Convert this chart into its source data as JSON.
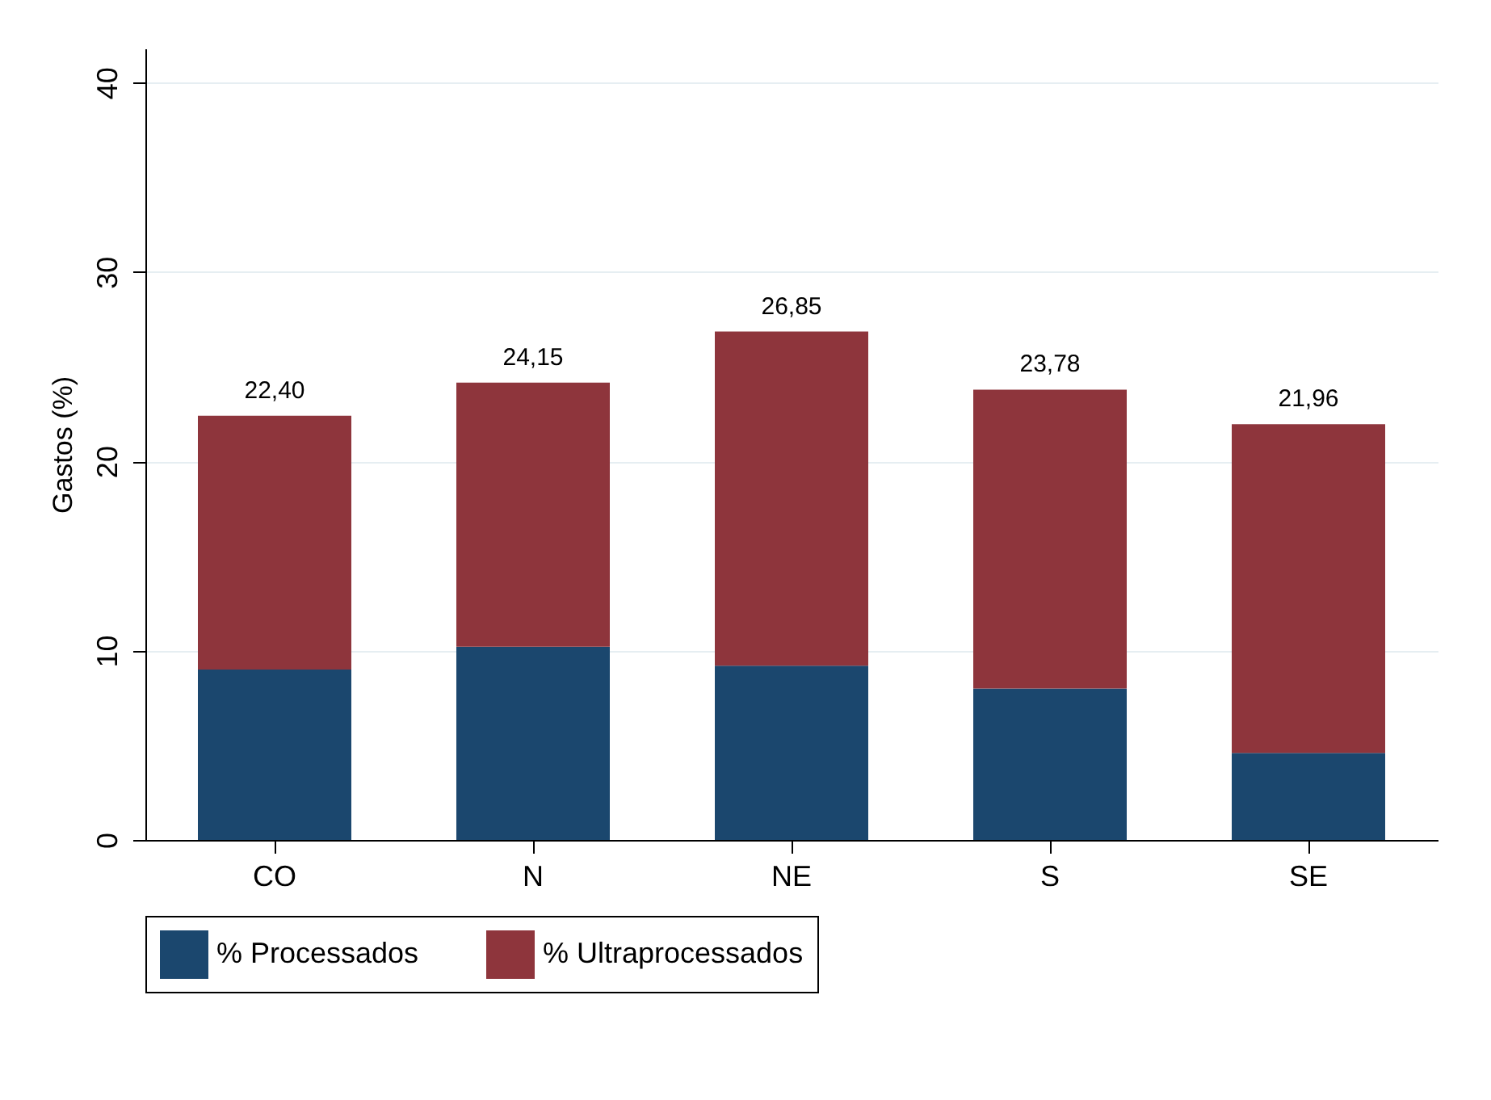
{
  "chart_data": {
    "type": "bar",
    "stacked": true,
    "ylabel": "Gastos (%)",
    "categories": [
      "CO",
      "N",
      "NE",
      "S",
      "SE"
    ],
    "series": [
      {
        "name": "% Processados",
        "color": "#1b476e",
        "values": [
          9.0,
          10.2,
          9.2,
          8.0,
          4.6
        ]
      },
      {
        "name": "% Ultraprocessados",
        "color": "#8e353c",
        "values": [
          13.4,
          13.95,
          17.65,
          15.78,
          17.36
        ]
      }
    ],
    "totals": [
      "22,40",
      "24,15",
      "26,85",
      "23,78",
      "21,96"
    ],
    "ylim": [
      0,
      41.8
    ],
    "yticks": [
      0,
      10,
      20,
      30,
      40
    ],
    "grid": "y",
    "legend": "bottom"
  }
}
